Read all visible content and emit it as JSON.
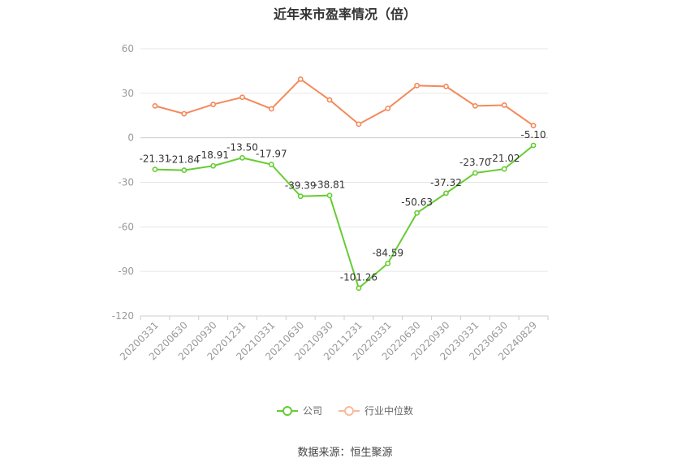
{
  "chart_data": {
    "type": "line",
    "title": "近年来市盈率情况（倍）",
    "categories": [
      "20200331",
      "20200630",
      "20200930",
      "20201231",
      "20210331",
      "20210630",
      "20210930",
      "20211231",
      "20220331",
      "20220630",
      "20220930",
      "20230331",
      "20230630",
      "20240829"
    ],
    "series": [
      {
        "name": "公司",
        "color": "#66cc33",
        "values": [
          -21.31,
          -21.84,
          -18.91,
          -13.5,
          -17.97,
          -39.39,
          -38.81,
          -101.26,
          -84.59,
          -50.63,
          -37.32,
          -23.7,
          -21.02,
          -5.1
        ],
        "labels": [
          "-21.31",
          "-21.84",
          "-18.91",
          "-13.50",
          "-17.97",
          "-39.39",
          "-38.81",
          "-101.26",
          "-84.59",
          "-50.63",
          "-37.32",
          "-23.70",
          "-21.02",
          "-5.10"
        ]
      },
      {
        "name": "行业中位数",
        "color": "#f4895a",
        "values": [
          21.5,
          16.2,
          22.5,
          27.3,
          19.5,
          39.5,
          25.5,
          9.2,
          19.8,
          35.2,
          34.6,
          21.5,
          22.0,
          8.2
        ]
      }
    ],
    "yticks": [
      "60",
      "30",
      "0",
      "-30",
      "-60",
      "-90",
      "-120"
    ],
    "ylim": [
      -120,
      60
    ],
    "grid": true,
    "legend_position": "bottom-center"
  },
  "legend": {
    "company": "公司",
    "industry": "行业中位数"
  },
  "source": "数据来源：恒生聚源"
}
